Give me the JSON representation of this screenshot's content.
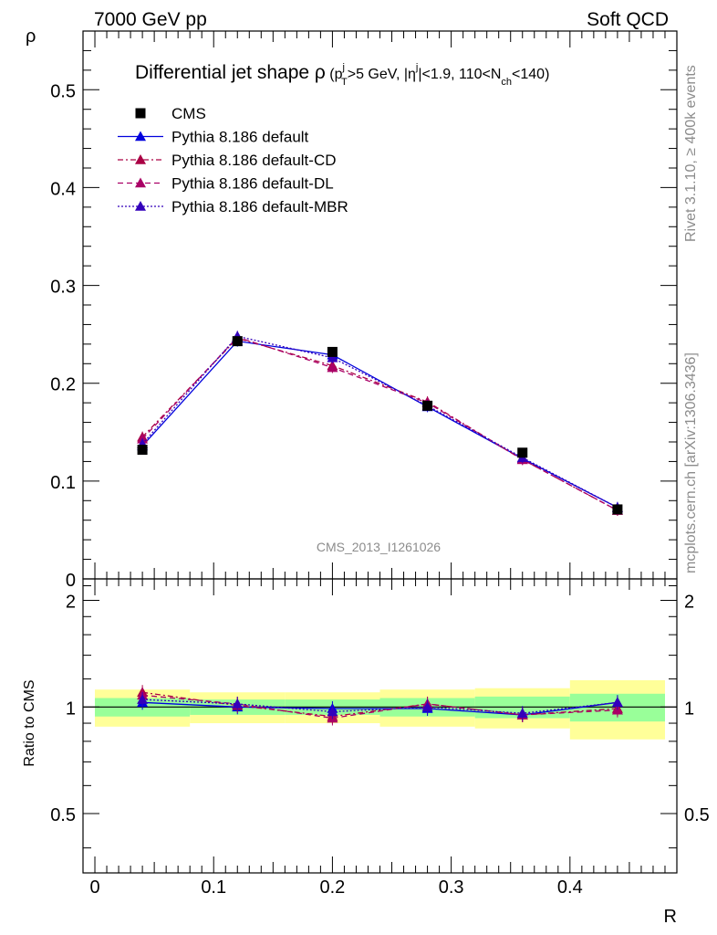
{
  "header": {
    "left": "7000 GeV pp",
    "right": "Soft QCD"
  },
  "side_labels": {
    "rivet": "Rivet 3.1.10, ≥ 400k events",
    "mcplots": "mcplots.cern.ch [arXiv:1306.3436]"
  },
  "chart_data": [
    {
      "type": "line",
      "title": "Differential jet shape ρ (p_T^j>5 GeV, |η^j|<1.9, 110<N_ch<140)",
      "title_parts": {
        "main": "Differential jet shape ",
        "rho": "ρ",
        "open": " (p",
        "sup_j": "j",
        "sub_T": "T",
        "pt_cut": ">5 GeV, |η",
        "sup_j2": "j",
        "eta_cut": "|<1.9, 110<N",
        "sub_ch": "ch",
        "nch_cut": "<140)"
      },
      "ylabel": "ρ",
      "ylim": [
        0,
        0.56
      ],
      "yticks": [
        {
          "v": 0,
          "label": "0"
        },
        {
          "v": 0.1,
          "label": "0.1"
        },
        {
          "v": 0.2,
          "label": "0.2"
        },
        {
          "v": 0.3,
          "label": "0.3"
        },
        {
          "v": 0.4,
          "label": "0.4"
        },
        {
          "v": 0.5,
          "label": "0.5"
        }
      ],
      "watermark": "CMS_2013_I1261026",
      "x": [
        0.04,
        0.12,
        0.2,
        0.28,
        0.36,
        0.44
      ],
      "data": {
        "name": "CMS",
        "color": "#000000",
        "values": [
          0.132,
          0.243,
          0.232,
          0.177,
          0.129,
          0.071
        ]
      },
      "series": [
        {
          "name": "Pythia 8.186 default",
          "color": "#0000dd",
          "dash": "",
          "values": [
            0.136,
            0.243,
            0.229,
            0.176,
            0.123,
            0.073
          ]
        },
        {
          "name": "Pythia 8.186 default-CD",
          "color": "#aa0044",
          "dash": "6,3,2,3",
          "values": [
            0.145,
            0.246,
            0.218,
            0.181,
            0.122,
            0.07
          ]
        },
        {
          "name": "Pythia 8.186 default-DL",
          "color": "#aa0066",
          "dash": "6,4",
          "values": [
            0.143,
            0.247,
            0.216,
            0.18,
            0.122,
            0.07
          ]
        },
        {
          "name": "Pythia 8.186 default-MBR",
          "color": "#3300bb",
          "dash": "2,2",
          "values": [
            0.138,
            0.248,
            0.226,
            0.177,
            0.124,
            0.073
          ]
        }
      ]
    },
    {
      "type": "line",
      "ylabel": "Ratio to CMS",
      "xlabel": "R",
      "ylim": [
        0.34,
        2.3
      ],
      "xlim": [
        -0.01,
        0.49
      ],
      "yticks": [
        {
          "v": 0.5,
          "label": "0.5"
        },
        {
          "v": 1,
          "label": "1"
        },
        {
          "v": 2,
          "label": "2"
        }
      ],
      "xticks": [
        {
          "v": 0,
          "label": "0"
        },
        {
          "v": 0.1,
          "label": "0.1"
        },
        {
          "v": 0.2,
          "label": "0.2"
        },
        {
          "v": 0.3,
          "label": "0.3"
        },
        {
          "v": 0.4,
          "label": "0.4"
        }
      ],
      "bins": [
        {
          "lo": 0.0,
          "hi": 0.08,
          "inner": [
            0.94,
            1.06
          ],
          "outer": [
            0.88,
            1.12
          ]
        },
        {
          "lo": 0.08,
          "hi": 0.16,
          "inner": [
            0.95,
            1.05
          ],
          "outer": [
            0.9,
            1.1
          ]
        },
        {
          "lo": 0.16,
          "hi": 0.24,
          "inner": [
            0.95,
            1.05
          ],
          "outer": [
            0.9,
            1.1
          ]
        },
        {
          "lo": 0.24,
          "hi": 0.32,
          "inner": [
            0.94,
            1.06
          ],
          "outer": [
            0.88,
            1.12
          ]
        },
        {
          "lo": 0.32,
          "hi": 0.4,
          "inner": [
            0.93,
            1.07
          ],
          "outer": [
            0.87,
            1.13
          ]
        },
        {
          "lo": 0.4,
          "hi": 0.48,
          "inner": [
            0.91,
            1.09
          ],
          "outer": [
            0.81,
            1.19
          ]
        }
      ],
      "ratios": [
        {
          "name": "Pythia 8.186 default",
          "values": [
            1.03,
            1.0,
            0.99,
            0.99,
            0.95,
            1.03
          ]
        },
        {
          "name": "Pythia 8.186 default-CD",
          "values": [
            1.1,
            1.01,
            0.94,
            1.02,
            0.95,
            0.99
          ]
        },
        {
          "name": "Pythia 8.186 default-DL",
          "values": [
            1.08,
            1.02,
            0.93,
            1.02,
            0.95,
            0.98
          ]
        },
        {
          "name": "Pythia 8.186 default-MBR",
          "values": [
            1.05,
            1.02,
            0.97,
            1.0,
            0.96,
            1.03
          ]
        }
      ],
      "colors": {
        "inner": "#99ff99",
        "outer": "#ffff99"
      }
    }
  ]
}
